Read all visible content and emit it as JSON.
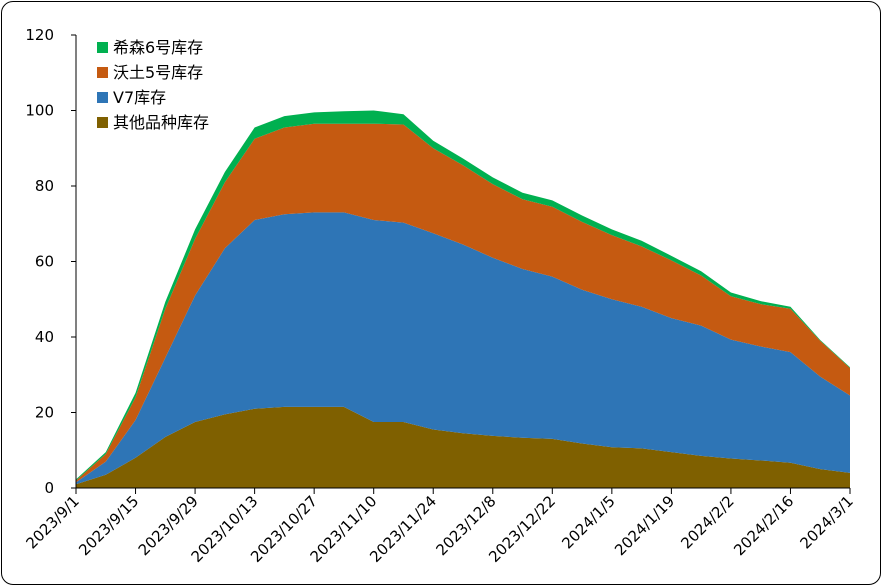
{
  "chart_data": {
    "type": "area",
    "stacked": true,
    "title": "",
    "xlabel": "",
    "ylabel": "",
    "ylim": [
      0,
      120
    ],
    "yticks": [
      0,
      20,
      40,
      60,
      80,
      100,
      120
    ],
    "grid": false,
    "legend_position": "top-left",
    "x": [
      "2023/9/1",
      "2023/9/8",
      "2023/9/15",
      "2023/9/22",
      "2023/9/29",
      "2023/10/6",
      "2023/10/13",
      "2023/10/20",
      "2023/10/27",
      "2023/11/3",
      "2023/11/10",
      "2023/11/17",
      "2023/11/24",
      "2023/12/1",
      "2023/12/8",
      "2023/12/15",
      "2023/12/22",
      "2023/12/29",
      "2024/1/5",
      "2024/1/12",
      "2024/1/19",
      "2024/1/26",
      "2024/2/2",
      "2024/2/9",
      "2024/2/16",
      "2024/2/23",
      "2024/3/1"
    ],
    "xtick_labels": [
      "2023/9/1",
      "2023/9/15",
      "2023/9/29",
      "2023/10/13",
      "2023/10/27",
      "2023/11/10",
      "2023/11/24",
      "2023/12/8",
      "2023/12/22",
      "2024/1/5",
      "2024/1/19",
      "2024/2/2",
      "2024/2/16",
      "2024/3/1"
    ],
    "series": [
      {
        "name": "其他品种库存",
        "color": "#7f6000",
        "values": [
          1.0,
          3.5,
          8.0,
          13.5,
          17.5,
          19.5,
          21.0,
          21.5,
          21.5,
          21.5,
          17.5,
          17.5,
          15.5,
          14.5,
          13.8,
          13.3,
          13.0,
          11.8,
          10.8,
          10.5,
          9.5,
          8.5,
          7.8,
          7.3,
          6.7,
          5.0,
          4.0
        ]
      },
      {
        "name": "V7库存",
        "color": "#2e75b6",
        "values": [
          0.5,
          3.5,
          10.0,
          21.0,
          33.5,
          44.0,
          50.0,
          51.0,
          51.5,
          51.5,
          53.5,
          52.8,
          52.0,
          50.0,
          47.2,
          44.7,
          43.0,
          40.7,
          39.2,
          37.5,
          35.5,
          34.5,
          31.5,
          30.2,
          29.3,
          24.5,
          20.5
        ]
      },
      {
        "name": "沃土5号库存",
        "color": "#c55a11",
        "values": [
          0.5,
          2.0,
          6.0,
          13.0,
          15.0,
          17.5,
          21.5,
          23.0,
          23.5,
          23.5,
          25.5,
          26.0,
          22.5,
          21.0,
          19.5,
          18.5,
          18.5,
          18.0,
          17.0,
          16.0,
          15.3,
          13.3,
          11.5,
          11.2,
          11.5,
          9.5,
          7.3
        ]
      },
      {
        "name": "希森6号库存",
        "color": "#00b050",
        "values": [
          0.3,
          0.5,
          1.2,
          1.8,
          2.5,
          2.7,
          3.0,
          3.0,
          3.0,
          3.3,
          3.5,
          2.7,
          2.0,
          1.8,
          1.8,
          1.7,
          1.7,
          1.7,
          1.5,
          1.5,
          1.2,
          1.1,
          1.0,
          0.8,
          0.5,
          0.2,
          0.2
        ]
      }
    ]
  }
}
